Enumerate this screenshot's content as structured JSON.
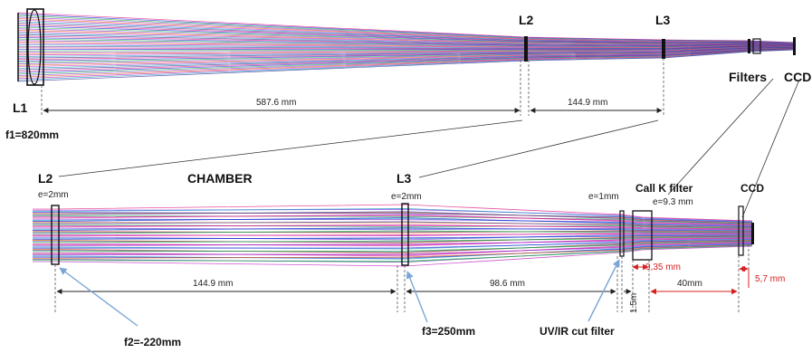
{
  "top": {
    "l1": "L1",
    "l2": "L2",
    "l3": "L3",
    "filters": "Filters",
    "ccd": "CCD",
    "f1": "f1=820mm",
    "d1": "587.6  mm",
    "d2": "144.9    mm"
  },
  "bottom": {
    "l2": "L2",
    "chamber": "CHAMBER",
    "l3": "L3",
    "callk": "Call K filter",
    "ccd": "CCD",
    "e_l2": "e=2mm",
    "e_l3": "e=2mm",
    "e_uv": "e=1mm",
    "e_callk": "e=9.3  mm",
    "d1": "144.9     mm",
    "d2": "98.6   mm",
    "d3": "1.5m",
    "d4": "40mm",
    "d5": "9,35 mm",
    "d6": "5,7 mm",
    "f2": "f2=-220mm",
    "f3": "f3=250mm",
    "uvir": "UV/IR cut filter"
  },
  "colors": {
    "rays": [
      "#e0147f",
      "#1a1ad8",
      "#18b43c",
      "#8a2be2",
      "#e06010",
      "#c01cc0",
      "#1090c0",
      "#303090"
    ],
    "red": "#d42020",
    "pointer": "#7aa6d6"
  }
}
